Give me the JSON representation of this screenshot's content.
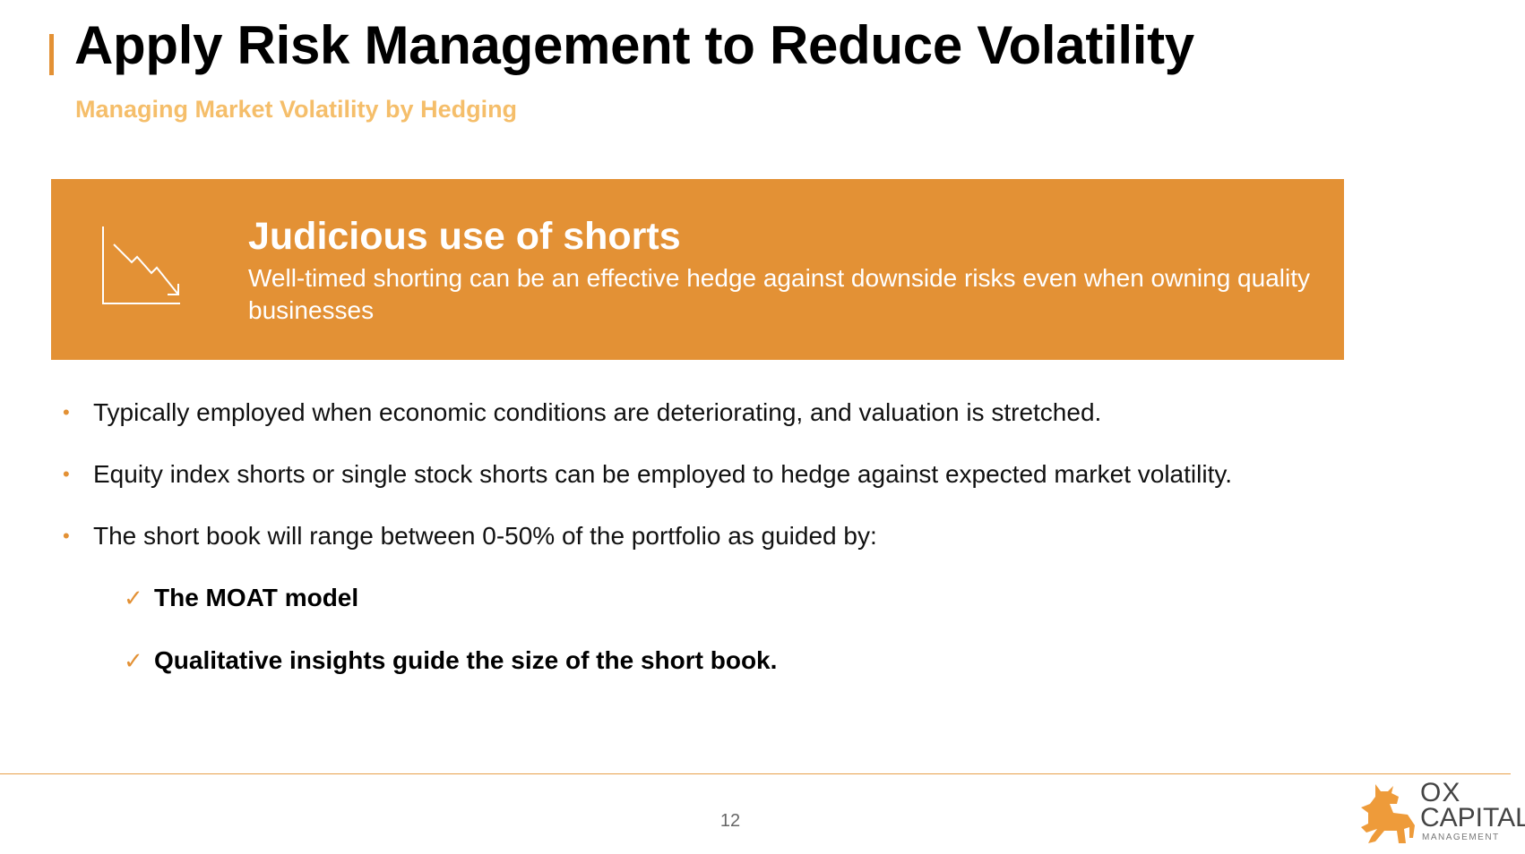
{
  "header": {
    "title": "Apply Risk Management to Reduce Volatility",
    "subtitle": "Managing Market Volatility by Hedging"
  },
  "callout": {
    "icon": "declining-chart-icon",
    "heading": "Judicious use of shorts",
    "text": "Well-timed shorting can be an effective hedge against downside risks even when owning quality businesses",
    "background_color": "#E39135"
  },
  "bullets": [
    {
      "text": "Typically employed when economic conditions are deteriorating, and valuation is stretched."
    },
    {
      "text": "Equity index shorts or single stock shorts can be employed to hedge against expected market volatility."
    },
    {
      "text": "The short book will range between 0-50% of the portfolio as guided by:"
    }
  ],
  "sub_bullets": [
    {
      "icon": "checkmark-icon",
      "mark": "✓",
      "text": "The MOAT model"
    },
    {
      "icon": "checkmark-icon",
      "mark": "✓",
      "text": "Qualitative insights guide the size of the short book."
    }
  ],
  "footer": {
    "page_number": "12",
    "logo": {
      "line1": "OX",
      "line2": "CAPITAL",
      "line3": "MANAGEMENT"
    }
  },
  "colors": {
    "accent": "#E39135",
    "subtitle": "#F5BE6A"
  }
}
